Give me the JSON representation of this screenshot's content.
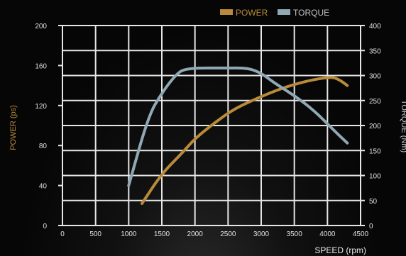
{
  "chart_data": {
    "type": "line",
    "title": "",
    "xlabel": "SPEED (rpm)",
    "ylabel_left": "POWER (ps)",
    "ylabel_right": "TORQUE (Nm)",
    "xlim": [
      0,
      4500
    ],
    "ylim_left": [
      0,
      200
    ],
    "ylim_right": [
      0,
      400
    ],
    "x_ticks": [
      0,
      500,
      1000,
      1500,
      2000,
      2500,
      3000,
      3500,
      4000,
      4500
    ],
    "y_left_ticks": [
      0,
      40,
      80,
      120,
      160,
      200
    ],
    "y_right_ticks": [
      0,
      50,
      100,
      150,
      200,
      250,
      300,
      350,
      400
    ],
    "grid": true,
    "legend_position": "top-right",
    "series": [
      {
        "name": "POWER",
        "axis": "left",
        "color": "#b88a3a",
        "x": [
          1200,
          1500,
          1800,
          2000,
          2300,
          2600,
          3000,
          3300,
          3600,
          3800,
          4000,
          4100,
          4200,
          4300
        ],
        "y": [
          22,
          52,
          72,
          87,
          103,
          117,
          129,
          137,
          143,
          146,
          148,
          148,
          145,
          140
        ]
      },
      {
        "name": "TORQUE",
        "axis": "right",
        "color": "#8fa8b4",
        "x": [
          1000,
          1300,
          1500,
          1700,
          1850,
          2500,
          2800,
          3000,
          3200,
          3500,
          3800,
          4100,
          4300
        ],
        "y": [
          80,
          220,
          265,
          300,
          315,
          315,
          315,
          305,
          285,
          260,
          230,
          190,
          165
        ]
      }
    ]
  }
}
